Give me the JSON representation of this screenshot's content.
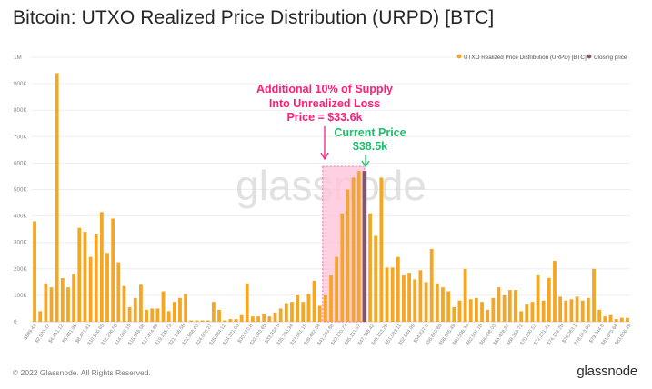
{
  "title": "Bitcoin: UTXO Realized Price Distribution (URPD) [BTC]",
  "watermark": "glassnode",
  "copyright": "© 2022 Glassnode. All Rights Reserved.",
  "brand": "glassnode",
  "colors": {
    "bars": "#f5a623",
    "closing_price": "#7a5870",
    "highlight": "#ffc4dc",
    "loss_annotation": "#ff1d78",
    "price_annotation": "#1bbf6b"
  },
  "chart_data": {
    "type": "bar",
    "legend_position": "top-right",
    "series": [
      {
        "name": "UTXO Realized Price Distribution (URPD) [BTC]",
        "values": [
          380000,
          40000,
          145000,
          130000,
          940000,
          165000,
          130000,
          180000,
          355000,
          340000,
          245000,
          330000,
          415000,
          260000,
          390000,
          225000,
          135000,
          55000,
          90000,
          140000,
          45000,
          50000,
          50000,
          115000,
          40000,
          75000,
          90000,
          105000,
          5000,
          5000,
          5000,
          5000,
          75000,
          45000,
          5000,
          10000,
          10000,
          25000,
          145000,
          20000,
          20000,
          30000,
          20000,
          35000,
          50000,
          70000,
          75000,
          100000,
          75000,
          105000,
          155000,
          60000,
          100000,
          175000,
          245000,
          410000,
          500000,
          545000,
          570000,
          0,
          410000,
          325000,
          545000,
          205000,
          205000,
          245000,
          175000,
          185000,
          160000,
          195000,
          150000,
          275000,
          145000,
          130000,
          115000,
          55000,
          80000,
          200000,
          85000,
          90000,
          75000,
          45000,
          90000,
          130000,
          100000,
          120000,
          120000,
          40000,
          65000,
          75000,
          175000,
          80000,
          165000,
          230000,
          95000,
          80000,
          85000,
          95000,
          80000,
          90000,
          200000,
          45000,
          20000,
          25000,
          10000,
          15000,
          15000
        ]
      },
      {
        "name": "Closing price"
      }
    ],
    "closing_price_index": 59,
    "closing_price_value": 570000,
    "y_ticks": [
      "0",
      "100K",
      "200K",
      "300K",
      "400K",
      "500K",
      "600K",
      "700K",
      "800K",
      "900K",
      "1M"
    ],
    "ylim": [
      0,
      1000000
    ],
    "x_tick_labels": [
      "$589.42",
      "$2,520.37",
      "$4,451.12",
      "$6,481.96",
      "$8,471.81",
      "$10,500.65",
      "$12,296.55",
      "$14,068.19",
      "$15,648.58",
      "$17,414.89",
      "$19,195.73",
      "$21,166.58",
      "$22,936.43",
      "$24,608.27",
      "$26,534.12",
      "$28,321.96",
      "$30,170.8",
      "$32,083.65",
      "$33,634.5",
      "$35,760.34",
      "$37,561.15",
      "$39,432.04",
      "$41,293.88",
      "$43,120.73",
      "$45,151.57",
      "$47,188.42",
      "$49,153.26",
      "$51,083.11",
      "$52,984.95",
      "$54,837.8",
      "$56,810.65",
      "$58,665.49",
      "$60,596.34",
      "$62,597.18",
      "$64,498.03",
      "$66,428.87",
      "$68,359.72",
      "$70,290.57",
      "$72,221.41",
      "$74,152.26",
      "$76,083.1",
      "$78,013.95",
      "$79,944.8",
      "$81,875.64",
      "$83,806.49"
    ],
    "annotations": {
      "loss_lines": [
        "Additional 10% of Supply",
        "Into Unrealized Loss",
        "Price = $33.6k"
      ],
      "current_lines": [
        "Current Price",
        "$38.5k"
      ]
    }
  }
}
